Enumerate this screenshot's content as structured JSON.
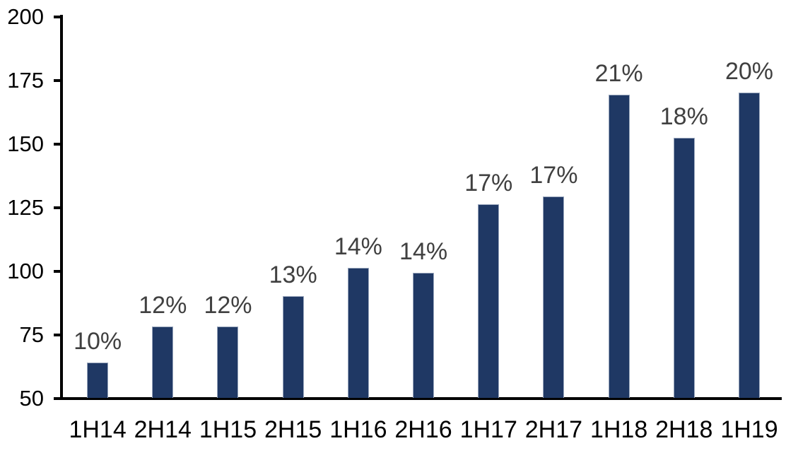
{
  "chart_data": {
    "type": "bar",
    "title": "",
    "xlabel": "",
    "ylabel": "",
    "categories": [
      "1H14",
      "2H14",
      "1H15",
      "2H15",
      "1H16",
      "2H16",
      "1H17",
      "2H17",
      "1H18",
      "2H18",
      "1H19"
    ],
    "values": [
      64,
      78,
      78,
      90,
      101,
      99,
      126,
      129,
      169,
      152,
      170
    ],
    "bar_labels": [
      "10%",
      "12%",
      "12%",
      "13%",
      "14%",
      "14%",
      "17%",
      "17%",
      "21%",
      "18%",
      "20%"
    ],
    "ylim": [
      50,
      200
    ],
    "yticks": [
      50,
      75,
      100,
      125,
      150,
      175,
      200
    ],
    "grid": false,
    "legend": "none",
    "colors": {
      "bar_fill": "#1F3864",
      "bar_border": "#9AA7BD",
      "data_label": "#404040",
      "axis_text": "#000000",
      "axis_line": "#000000",
      "background": "#FFFFFF"
    }
  }
}
